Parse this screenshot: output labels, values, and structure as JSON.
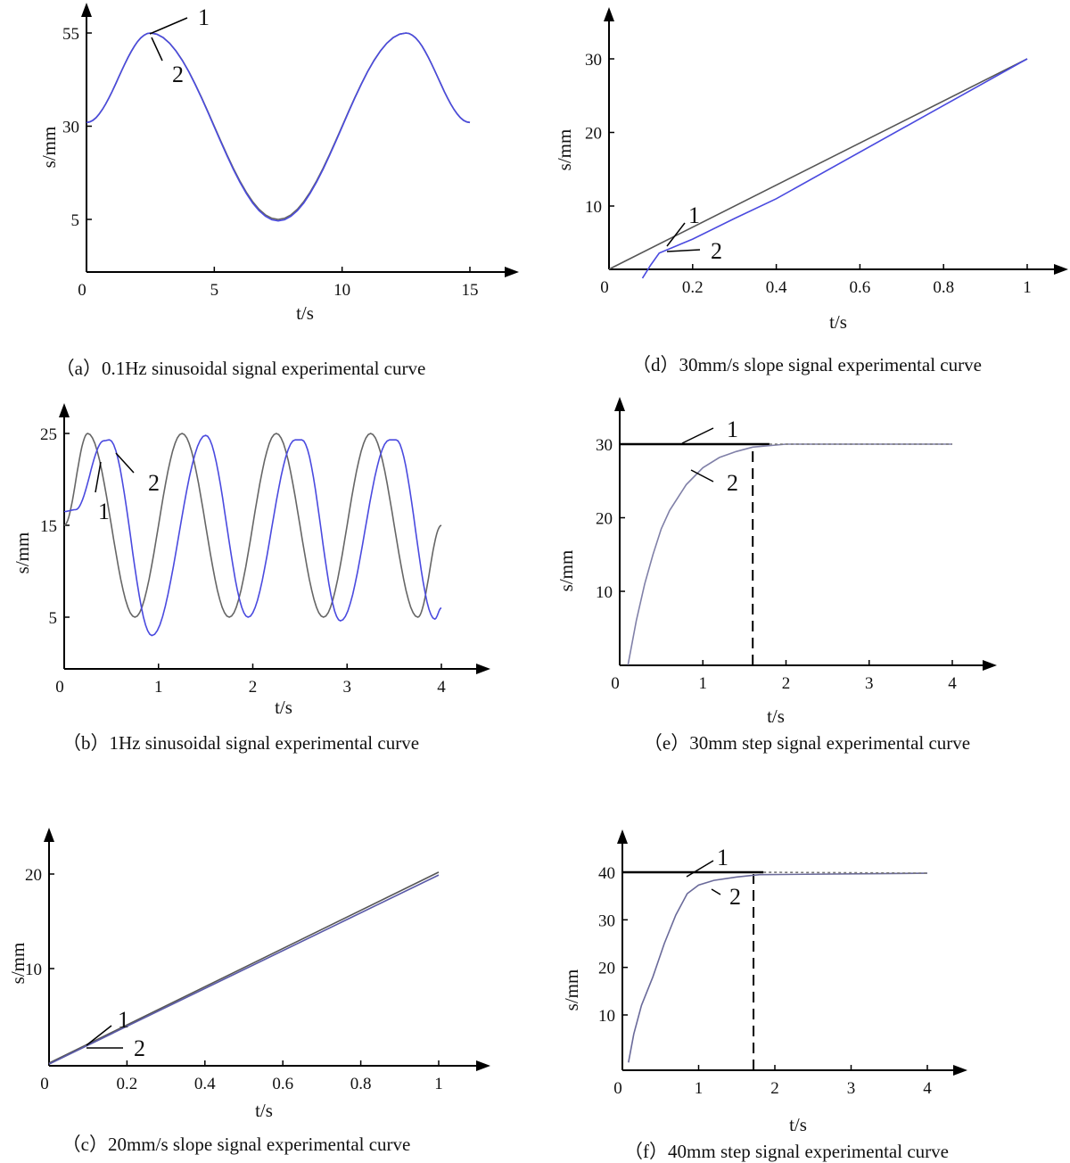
{
  "chart_data": [
    {
      "id": "a",
      "type": "line",
      "caption": "（a）0.1Hz sinusoidal signal experimental curve",
      "xlabel": "t/s",
      "ylabel": "s/mm",
      "xlim": [
        0,
        15
      ],
      "ylim": [
        -4,
        62
      ],
      "xticks": [
        0,
        5,
        10,
        15
      ],
      "yticks": [
        5,
        30,
        55
      ],
      "series": [
        {
          "name": "1",
          "color": "#666666",
          "smooth": true,
          "x": [
            0,
            2.5,
            7.5,
            12.5,
            15
          ],
          "y": [
            31,
            55,
            5,
            55,
            31
          ]
        },
        {
          "name": "2",
          "color": "#4a4adf",
          "smooth": true,
          "x": [
            0,
            2.5,
            7.5,
            12.5,
            15
          ],
          "y": [
            31,
            55,
            4.6,
            55,
            31
          ]
        }
      ],
      "annotations": [
        "1",
        "2"
      ]
    },
    {
      "id": "b",
      "type": "line",
      "caption": "（b）1Hz sinusoidal signal experimental curve",
      "xlabel": "t/s",
      "ylabel": "s/mm",
      "xlim": [
        0,
        4
      ],
      "ylim": [
        -0.8,
        28
      ],
      "xticks": [
        0,
        1,
        2,
        3,
        4
      ],
      "yticks": [
        5,
        15,
        25
      ],
      "series": [
        {
          "name": "1",
          "color": "#666666",
          "smooth": true,
          "x": [
            0,
            0.25,
            0.75,
            1.25,
            1.75,
            2.25,
            2.75,
            3.25,
            3.75,
            4
          ],
          "y": [
            15,
            25,
            5,
            25,
            5,
            25,
            5,
            25,
            5,
            15
          ]
        },
        {
          "name": "2",
          "color": "#4a4adf",
          "smooth": true,
          "x": [
            0,
            0.12,
            0.42,
            0.48,
            0.93,
            1.5,
            1.95,
            2.45,
            2.52,
            2.93,
            3.45,
            3.52,
            3.93,
            4
          ],
          "y": [
            16.5,
            16.7,
            24.2,
            24.3,
            3,
            24.8,
            5,
            24.3,
            24.3,
            4.6,
            24.3,
            24.3,
            4.8,
            6
          ]
        }
      ],
      "annotations": [
        "1",
        "2"
      ]
    },
    {
      "id": "c",
      "type": "line",
      "caption": "（c）20mm/s slope signal experimental curve",
      "xlabel": "t/s",
      "ylabel": "s/mm",
      "xlim": [
        0,
        1
      ],
      "ylim": [
        0,
        20
      ],
      "xticks": [
        0,
        0.2,
        0.4,
        0.6,
        0.8,
        1
      ],
      "yticks": [
        10,
        20
      ],
      "series": [
        {
          "name": "1",
          "color": "#555555",
          "smooth": false,
          "x": [
            0,
            1
          ],
          "y": [
            0,
            20.2
          ]
        },
        {
          "name": "2",
          "color": "#5a5aa8",
          "smooth": false,
          "x": [
            0,
            1
          ],
          "y": [
            -0.1,
            19.9
          ]
        }
      ],
      "annotations": [
        "1",
        "2"
      ]
    },
    {
      "id": "d",
      "type": "line",
      "caption": "（d）30mm/s slope signal experimental curve",
      "xlabel": "t/s",
      "ylabel": "s/mm",
      "xlim": [
        0,
        1
      ],
      "ylim": [
        1.4,
        30
      ],
      "xticks": [
        0,
        0.2,
        0.4,
        0.6,
        0.8,
        1
      ],
      "yticks": [
        10,
        20,
        30
      ],
      "series": [
        {
          "name": "1",
          "color": "#555555",
          "smooth": false,
          "x": [
            0,
            1
          ],
          "y": [
            1.4,
            30
          ]
        },
        {
          "name": "2",
          "color": "#4a4adf",
          "smooth": false,
          "x": [
            0.08,
            0.1,
            0.12,
            0.2,
            0.3,
            0.4,
            1
          ],
          "y": [
            0.2,
            2,
            3.6,
            5.5,
            8.3,
            11,
            30
          ]
        }
      ],
      "annotations": [
        "1",
        "2"
      ]
    },
    {
      "id": "e",
      "type": "line",
      "caption": "（e）30mm step signal experimental curve",
      "xlabel": "t/s",
      "ylabel": "s/mm",
      "xlim": [
        0,
        4
      ],
      "ylim": [
        0,
        30
      ],
      "xticks": [
        0,
        1,
        2,
        3,
        4
      ],
      "yticks": [
        10,
        20,
        30
      ],
      "settling_time": 1.6,
      "series": [
        {
          "name": "1",
          "color": "#000000",
          "smooth": false,
          "x": [
            0,
            1.8
          ],
          "y": [
            30,
            30
          ]
        },
        {
          "name": "2",
          "color": "#8080a8",
          "smooth": false,
          "x": [
            0.1,
            0.2,
            0.3,
            0.4,
            0.5,
            0.6,
            0.8,
            1.0,
            1.2,
            1.4,
            1.6,
            2,
            4
          ],
          "y": [
            0,
            6,
            11,
            15,
            18.5,
            21,
            24.5,
            26.8,
            28.2,
            29,
            29.6,
            30,
            30
          ]
        }
      ],
      "annotations": [
        "1",
        "2"
      ]
    },
    {
      "id": "f",
      "type": "line",
      "caption": "（f）40mm step signal experimental curve",
      "xlabel": "t/s",
      "ylabel": "s/mm",
      "xlim": [
        0,
        4
      ],
      "ylim": [
        0,
        40
      ],
      "xticks": [
        0,
        1,
        2,
        3,
        4
      ],
      "yticks": [
        10,
        20,
        30,
        40
      ],
      "settling_time": 1.72,
      "series": [
        {
          "name": "1",
          "color": "#000000",
          "smooth": false,
          "x": [
            0,
            1.85
          ],
          "y": [
            40,
            40
          ]
        },
        {
          "name": "2",
          "color": "#6a6a9a",
          "smooth": false,
          "x": [
            0.08,
            0.15,
            0.25,
            0.4,
            0.55,
            0.7,
            0.85,
            1.0,
            1.2,
            1.5,
            1.8,
            4
          ],
          "y": [
            0,
            6,
            12,
            18,
            25,
            31,
            35.5,
            37.3,
            38.3,
            39,
            39.5,
            39.8
          ]
        }
      ],
      "annotations": [
        "1",
        "2"
      ]
    }
  ]
}
